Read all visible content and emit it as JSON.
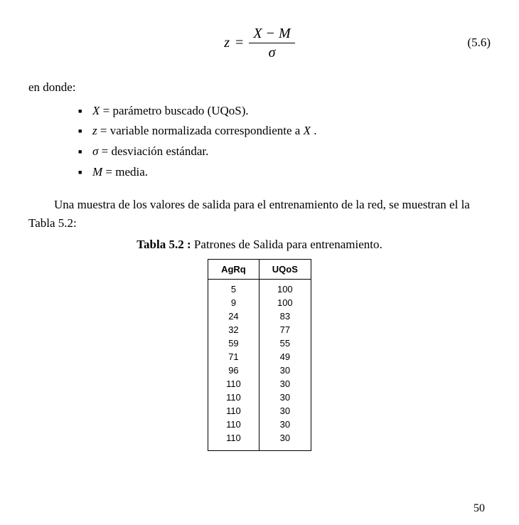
{
  "equation": {
    "lhs": "z",
    "eq": "=",
    "numerator": "X − M",
    "denominator": "σ",
    "number": "(5.6)"
  },
  "where_label": "en donde:",
  "definitions": [
    {
      "sym": "X",
      "text": " = parámetro buscado (UQoS)."
    },
    {
      "sym": "z",
      "text": " = variable normalizada correspondiente a ",
      "tail_sym": "X",
      "tail_text": " ."
    },
    {
      "sym": "σ",
      "text": " = desviación estándar."
    },
    {
      "sym": "M",
      "text": " = media."
    }
  ],
  "paragraph": "Una muestra de los valores de salida para el entrenamiento de la red, se muestran el la Tabla 5.2:",
  "caption": {
    "bold": "Tabla 5.2 :",
    "rest": " Patrones de Salida para entrenamiento."
  },
  "table": {
    "headers": [
      "AgRq",
      "UQoS"
    ],
    "rows": [
      [
        "5",
        "100"
      ],
      [
        "9",
        "100"
      ],
      [
        "24",
        "83"
      ],
      [
        "32",
        "77"
      ],
      [
        "59",
        "55"
      ],
      [
        "71",
        "49"
      ],
      [
        "96",
        "30"
      ],
      [
        "110",
        "30"
      ],
      [
        "110",
        "30"
      ],
      [
        "110",
        "30"
      ],
      [
        "110",
        "30"
      ],
      [
        "110",
        "30"
      ]
    ]
  },
  "page_number": "50"
}
